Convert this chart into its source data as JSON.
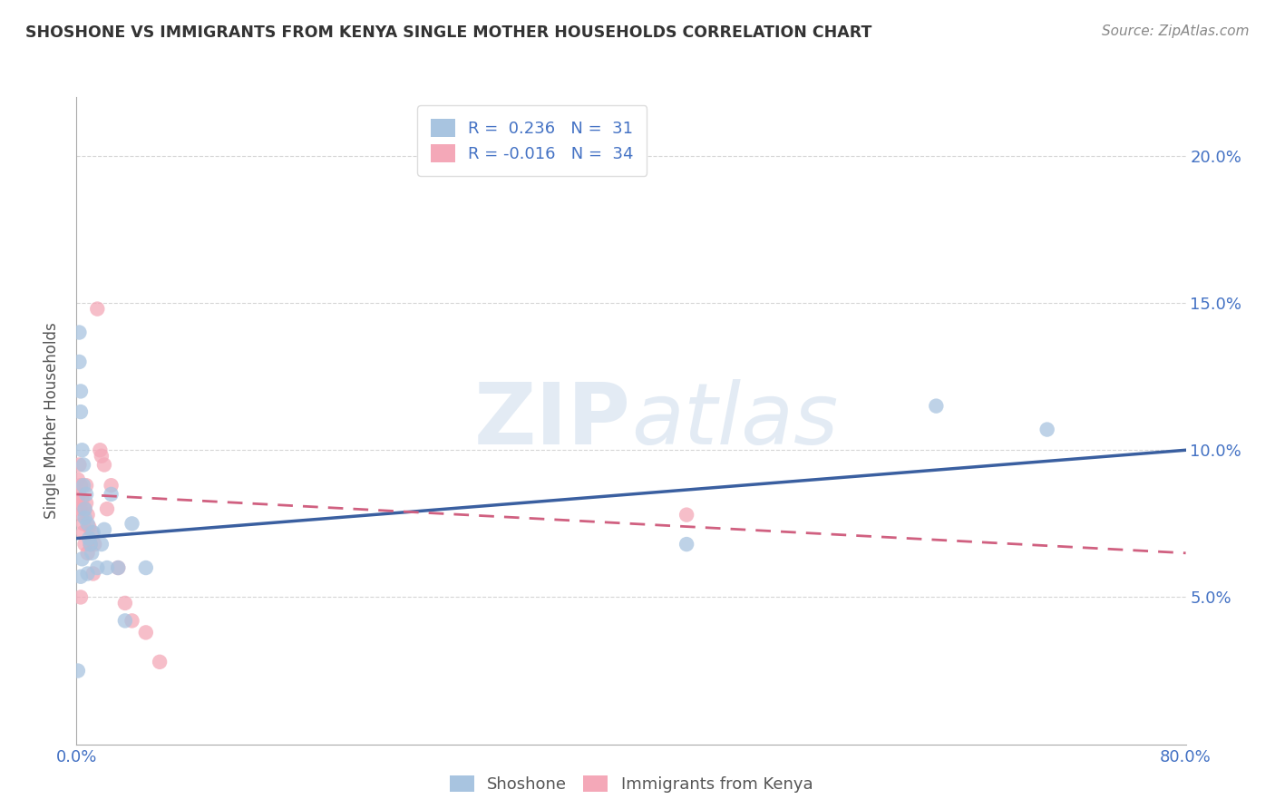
{
  "title": "SHOSHONE VS IMMIGRANTS FROM KENYA SINGLE MOTHER HOUSEHOLDS CORRELATION CHART",
  "source": "Source: ZipAtlas.com",
  "ylabel": "Single Mother Households",
  "watermark_zip": "ZIP",
  "watermark_atlas": "atlas",
  "xlim": [
    0.0,
    0.8
  ],
  "ylim": [
    0.0,
    0.22
  ],
  "xticks": [
    0.0,
    0.2,
    0.4,
    0.6,
    0.8
  ],
  "xtick_labels": [
    "0.0%",
    "",
    "",
    "",
    "80.0%"
  ],
  "yticks": [
    0.05,
    0.1,
    0.15,
    0.2
  ],
  "ytick_labels": [
    "5.0%",
    "10.0%",
    "15.0%",
    "20.0%"
  ],
  "shoshone_color": "#a8c4e0",
  "kenya_color": "#f4a8b8",
  "shoshone_line_color": "#3a5fa0",
  "kenya_line_color": "#d06080",
  "legend_shoshone_r": "0.236",
  "legend_shoshone_n": "31",
  "legend_kenya_r": "-0.016",
  "legend_kenya_n": "34",
  "shoshone_x": [
    0.002,
    0.002,
    0.003,
    0.003,
    0.004,
    0.005,
    0.005,
    0.006,
    0.006,
    0.007,
    0.008,
    0.009,
    0.01,
    0.011,
    0.012,
    0.015,
    0.018,
    0.02,
    0.022,
    0.025,
    0.03,
    0.035,
    0.04,
    0.05,
    0.44,
    0.62,
    0.7,
    0.001,
    0.003,
    0.004,
    0.008
  ],
  "shoshone_y": [
    0.14,
    0.13,
    0.12,
    0.113,
    0.1,
    0.095,
    0.088,
    0.08,
    0.077,
    0.085,
    0.075,
    0.07,
    0.068,
    0.065,
    0.072,
    0.06,
    0.068,
    0.073,
    0.06,
    0.085,
    0.06,
    0.042,
    0.075,
    0.06,
    0.068,
    0.115,
    0.107,
    0.025,
    0.057,
    0.063,
    0.058
  ],
  "kenya_x": [
    0.001,
    0.001,
    0.002,
    0.002,
    0.003,
    0.003,
    0.004,
    0.004,
    0.005,
    0.005,
    0.006,
    0.006,
    0.007,
    0.007,
    0.008,
    0.008,
    0.009,
    0.01,
    0.011,
    0.012,
    0.013,
    0.015,
    0.017,
    0.018,
    0.02,
    0.022,
    0.025,
    0.03,
    0.035,
    0.04,
    0.05,
    0.06,
    0.44,
    0.003
  ],
  "kenya_y": [
    0.09,
    0.083,
    0.095,
    0.085,
    0.08,
    0.088,
    0.083,
    0.078,
    0.075,
    0.072,
    0.08,
    0.068,
    0.088,
    0.082,
    0.065,
    0.078,
    0.074,
    0.068,
    0.072,
    0.058,
    0.068,
    0.148,
    0.1,
    0.098,
    0.095,
    0.08,
    0.088,
    0.06,
    0.048,
    0.042,
    0.038,
    0.028,
    0.078,
    0.05
  ],
  "shoshone_trendline_x": [
    0.0,
    0.8
  ],
  "shoshone_trendline_y": [
    0.07,
    0.1
  ],
  "kenya_trendline_x": [
    0.0,
    0.8
  ],
  "kenya_trendline_y": [
    0.085,
    0.065
  ]
}
